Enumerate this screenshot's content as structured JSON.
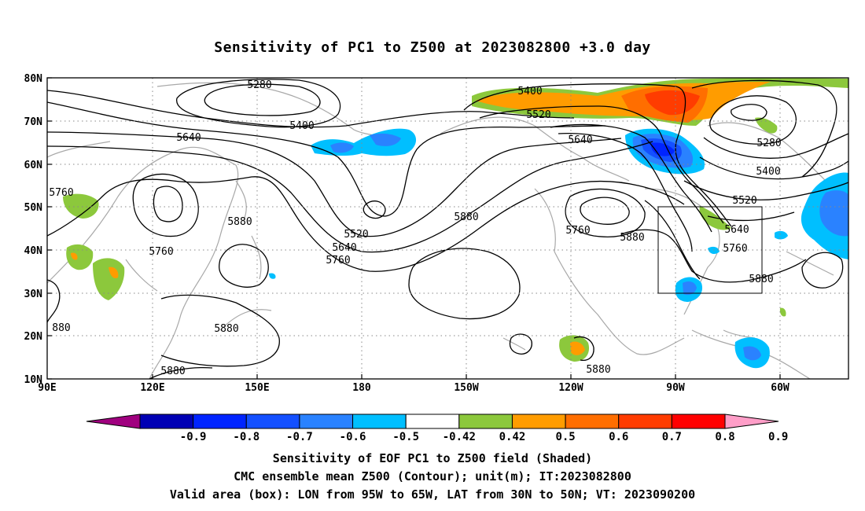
{
  "title": "Sensitivity of PC1 to Z500 at 2023082800 +3.0 day",
  "map": {
    "lat_labels": [
      "80N",
      "70N",
      "60N",
      "50N",
      "40N",
      "30N",
      "20N",
      "10N"
    ],
    "lon_labels": [
      "90E",
      "120E",
      "150E",
      "180",
      "150W",
      "120W",
      "90W",
      "60W"
    ],
    "contour_labels": [
      {
        "text": "5280"
      },
      {
        "text": "5400"
      },
      {
        "text": "5640"
      },
      {
        "text": "5760"
      },
      {
        "text": "5880"
      },
      {
        "text": "5760"
      },
      {
        "text": "5520"
      },
      {
        "text": "5640"
      },
      {
        "text": "5760"
      },
      {
        "text": "5880"
      },
      {
        "text": "5880"
      },
      {
        "text": "5400"
      },
      {
        "text": "5520"
      },
      {
        "text": "5640"
      },
      {
        "text": "5760"
      },
      {
        "text": "5880"
      },
      {
        "text": "5280"
      },
      {
        "text": "5400"
      },
      {
        "text": "5520"
      },
      {
        "text": "5640"
      },
      {
        "text": "5760"
      },
      {
        "text": "5880"
      },
      {
        "text": "880"
      },
      {
        "text": "5880"
      },
      {
        "text": "5880"
      }
    ],
    "valid_box": {
      "lon_from": "95W",
      "lon_to": "65W",
      "lat_from": "30N",
      "lat_to": "50N"
    }
  },
  "colorbar": {
    "labels": [
      "-0.9",
      "-0.8",
      "-0.7",
      "-0.6",
      "-0.5",
      "-0.42",
      "0.42",
      "0.5",
      "0.6",
      "0.7",
      "0.8",
      "0.9"
    ],
    "colors": [
      "#a0007f",
      "#0000b4",
      "#0024ff",
      "#1450ff",
      "#2a82ff",
      "#00bfff",
      "#ffffff",
      "#8cc83c",
      "#ff9c00",
      "#ff6e00",
      "#ff3c00",
      "#ff0000",
      "#ff9ec8"
    ]
  },
  "captions": {
    "line1": "Sensitivity of EOF PC1 to Z500 field (Shaded)",
    "line2": "CMC ensemble mean Z500 (Contour); unit(m); IT:2023082800",
    "line3": "Valid area (box): LON from 95W to 65W, LAT from 30N to 50N; VT: 2023090200"
  }
}
